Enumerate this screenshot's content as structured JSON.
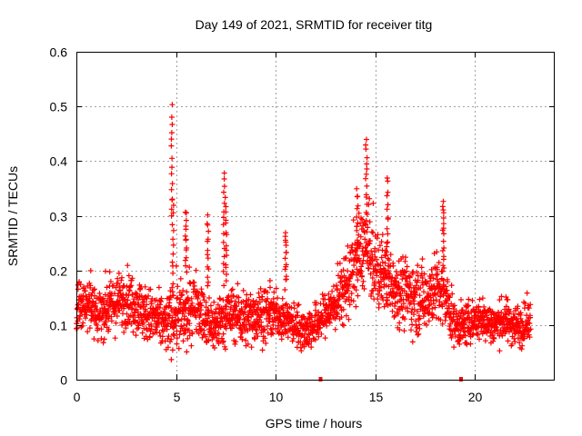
{
  "chart_data": {
    "type": "scatter",
    "title": "Day 149 of 2021, SRMTID for receiver titg",
    "xlabel": "GPS time / hours",
    "ylabel": "SRMTID / TECUs",
    "xlim": [
      0,
      24
    ],
    "ylim": [
      0,
      0.6
    ],
    "xticks": [
      0,
      5,
      10,
      15,
      20
    ],
    "xtick_labels": [
      "0",
      "5",
      "10",
      "15",
      "20"
    ],
    "yticks": [
      0,
      0.1,
      0.2,
      0.3,
      0.4,
      0.5,
      0.6
    ],
    "ytick_labels": [
      "0",
      "0.1",
      "0.2",
      "0.3",
      "0.4",
      "0.5",
      "0.6"
    ],
    "grid": true,
    "marker": "plus",
    "color": "#ff0000",
    "baseline_marks_x": [
      12.25,
      19.3
    ],
    "series": [
      {
        "name": "SRMTID",
        "x_range": [
          0,
          22.8
        ],
        "profile_hours": [
          0,
          0.5,
          1,
          1.5,
          2,
          2.5,
          3,
          3.5,
          4,
          4.5,
          5,
          5.5,
          6,
          6.5,
          7,
          7.5,
          8,
          8.5,
          9,
          9.5,
          10,
          10.5,
          11,
          11.5,
          12,
          12.5,
          13,
          13.5,
          14,
          14.5,
          15,
          15.5,
          16,
          16.5,
          17,
          17.5,
          18,
          18.5,
          19,
          19.5,
          20,
          20.5,
          21,
          21.5,
          22,
          22.5,
          22.8
        ],
        "profile_center": [
          0.13,
          0.14,
          0.12,
          0.13,
          0.14,
          0.15,
          0.14,
          0.12,
          0.11,
          0.1,
          0.12,
          0.11,
          0.15,
          0.1,
          0.1,
          0.12,
          0.12,
          0.11,
          0.12,
          0.12,
          0.12,
          0.11,
          0.1,
          0.09,
          0.1,
          0.12,
          0.14,
          0.17,
          0.21,
          0.25,
          0.2,
          0.19,
          0.17,
          0.16,
          0.15,
          0.15,
          0.17,
          0.15,
          0.1,
          0.1,
          0.11,
          0.11,
          0.1,
          0.11,
          0.1,
          0.1,
          0.11
        ],
        "profile_spread": [
          0.04,
          0.04,
          0.04,
          0.04,
          0.04,
          0.04,
          0.04,
          0.04,
          0.04,
          0.04,
          0.05,
          0.05,
          0.04,
          0.04,
          0.04,
          0.04,
          0.04,
          0.04,
          0.04,
          0.04,
          0.03,
          0.03,
          0.03,
          0.03,
          0.03,
          0.03,
          0.04,
          0.05,
          0.06,
          0.06,
          0.06,
          0.05,
          0.05,
          0.05,
          0.05,
          0.05,
          0.05,
          0.05,
          0.03,
          0.03,
          0.03,
          0.03,
          0.03,
          0.03,
          0.03,
          0.03,
          0.03
        ],
        "spikes": [
          {
            "x": 4.8,
            "y_from": 0.3,
            "y_to": 0.5
          },
          {
            "x": 4.85,
            "y_from": 0.15,
            "y_to": 0.33
          },
          {
            "x": 5.5,
            "y_from": 0.2,
            "y_to": 0.31
          },
          {
            "x": 6.6,
            "y_from": 0.17,
            "y_to": 0.3
          },
          {
            "x": 7.4,
            "y_from": 0.2,
            "y_to": 0.38
          },
          {
            "x": 7.5,
            "y_from": 0.18,
            "y_to": 0.33
          },
          {
            "x": 10.5,
            "y_from": 0.18,
            "y_to": 0.27
          },
          {
            "x": 14.1,
            "y_from": 0.22,
            "y_to": 0.35
          },
          {
            "x": 14.55,
            "y_from": 0.3,
            "y_to": 0.44
          },
          {
            "x": 15.6,
            "y_from": 0.22,
            "y_to": 0.37
          },
          {
            "x": 18.4,
            "y_from": 0.22,
            "y_to": 0.33
          }
        ]
      }
    ]
  }
}
